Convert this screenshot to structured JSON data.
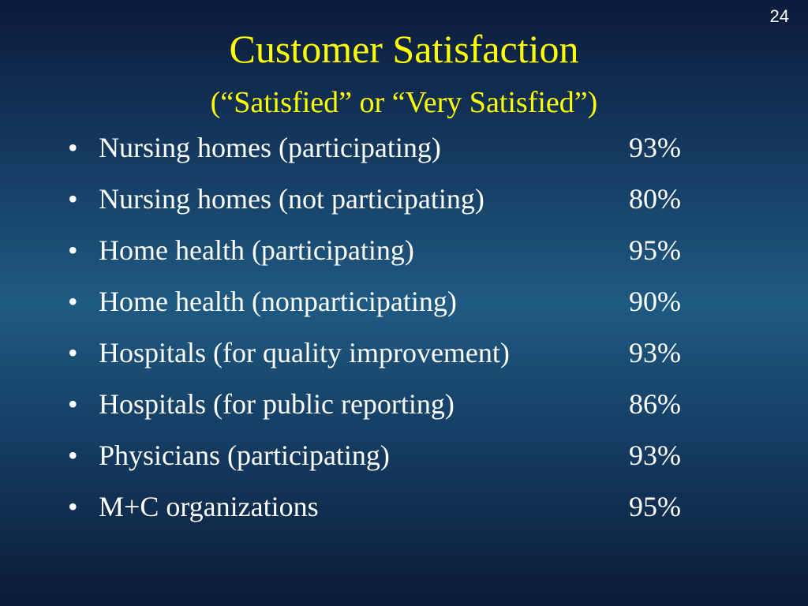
{
  "slide_number": "24",
  "title": "Customer Satisfaction",
  "subtitle": "(“Satisfied” or “Very Satisfied”)",
  "items": [
    {
      "label": "Nursing homes (participating)",
      "value": "93%"
    },
    {
      "label": "Nursing homes (not participating)",
      "value": "80%"
    },
    {
      "label": "Home health (participating)",
      "value": "95%"
    },
    {
      "label": "Home health (nonparticipating)",
      "value": "90%"
    },
    {
      "label": "Hospitals (for quality improvement)",
      "value": "93%"
    },
    {
      "label": "Hospitals (for public reporting)",
      "value": "86%"
    },
    {
      "label": "Physicians (participating)",
      "value": "93%"
    },
    {
      "label": "M+C organizations",
      "value": "95%"
    }
  ]
}
